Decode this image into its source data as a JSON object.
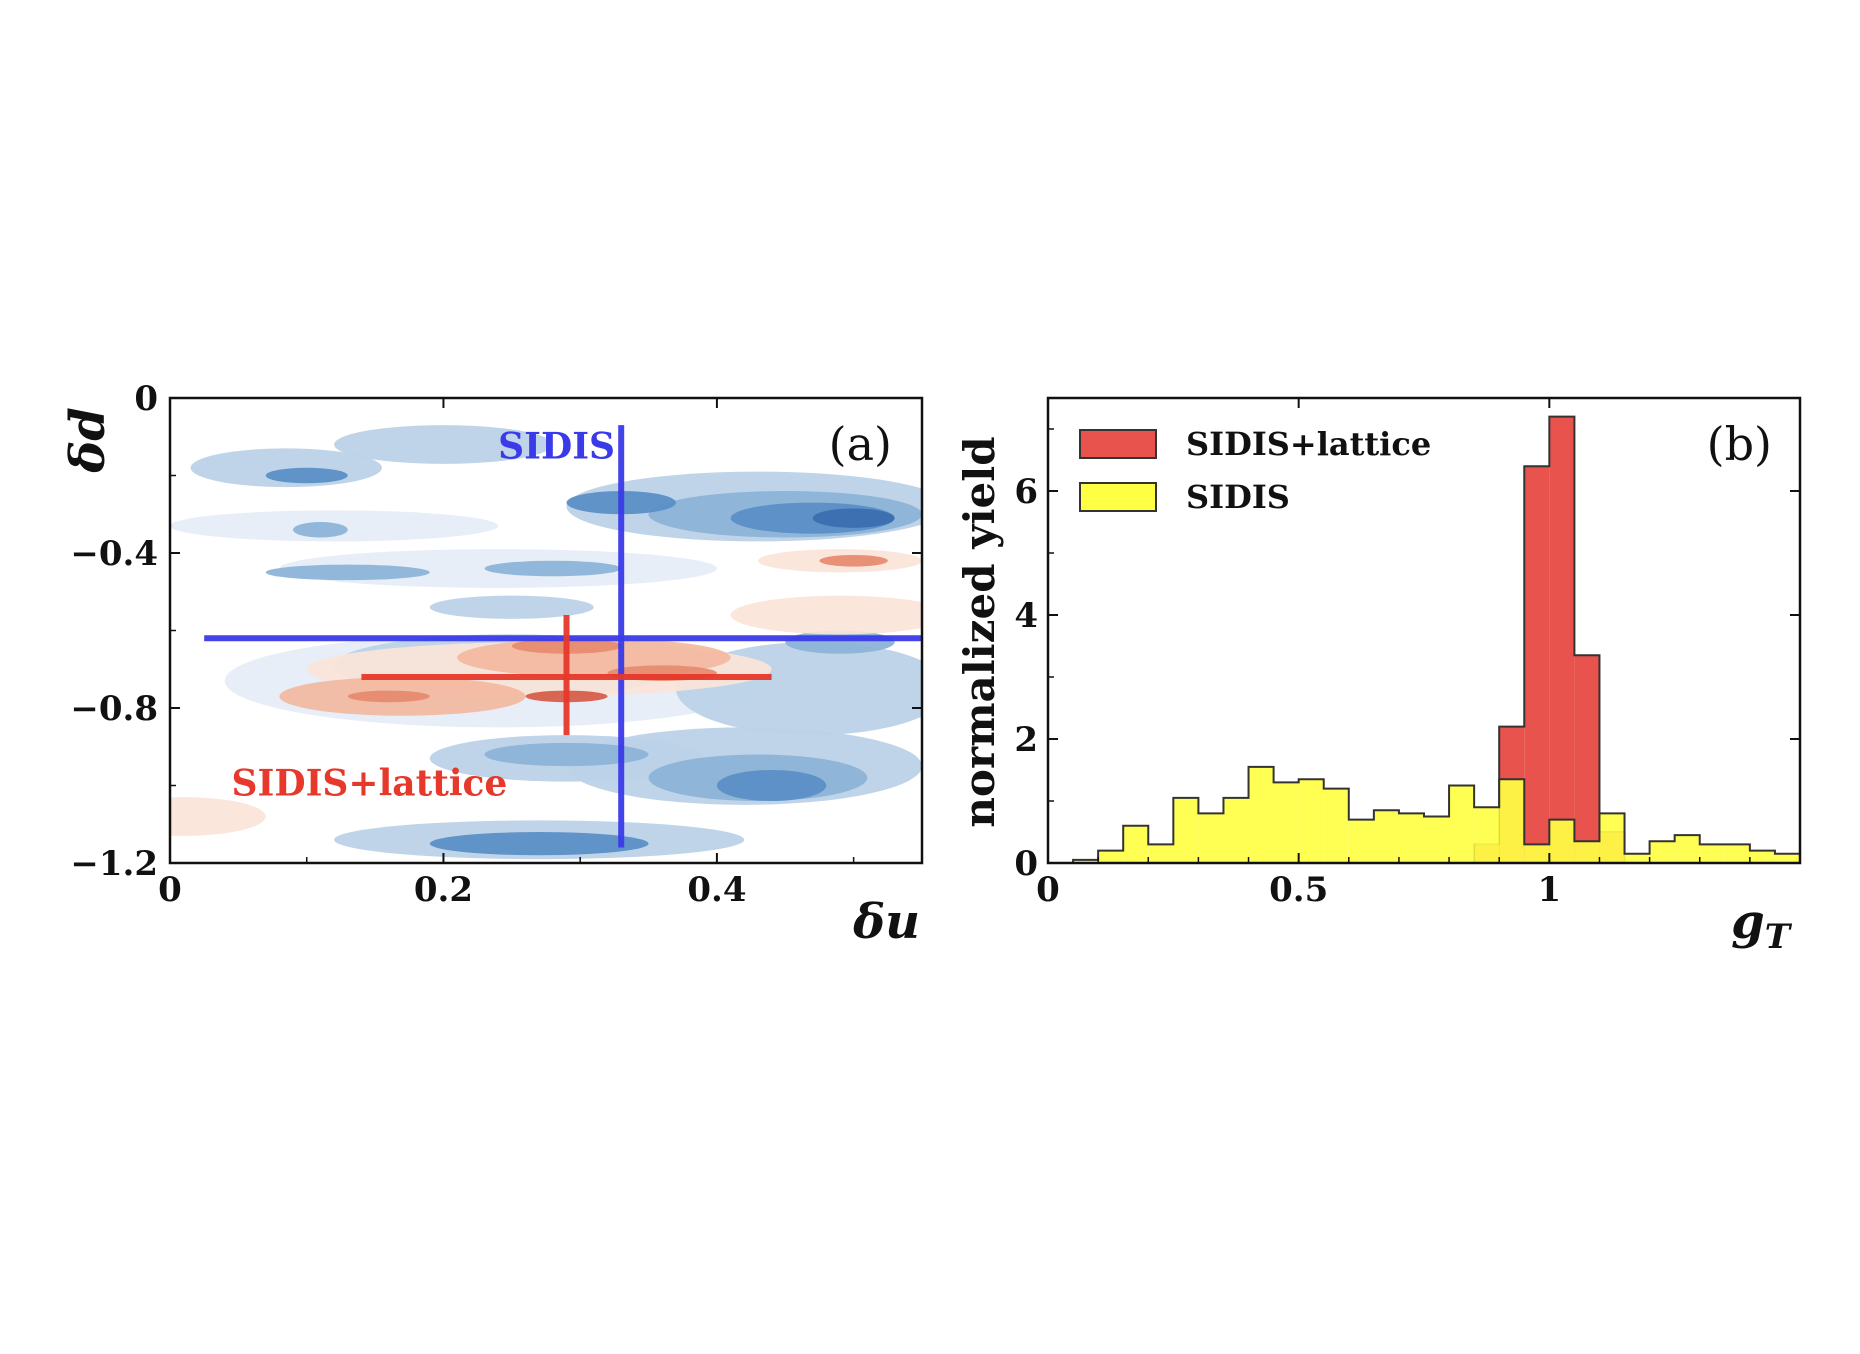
{
  "colors": {
    "sidis": "#ffff44",
    "sidis_lattice": "#e8534e",
    "overlap": "#e4502a",
    "blue_line": "#3a3ae8",
    "red_line": "#e6382b",
    "blue_contours": [
      "#e6edf7",
      "#bcd2e8",
      "#8cb3d8",
      "#5b8fc6",
      "#3a6fb0"
    ],
    "red_contours": [
      "#fbe4d8",
      "#f3b9a0",
      "#e68a6e",
      "#d65a45"
    ]
  },
  "chart_data": [
    {
      "id": "a",
      "type": "contour",
      "panel_label": "(a)",
      "xlabel": "δu",
      "ylabel": "δd",
      "xlim": [
        0,
        0.55
      ],
      "ylim": [
        -1.2,
        0
      ],
      "xticks": [
        "0",
        "0.2",
        "0.4"
      ],
      "xtick_values": [
        0,
        0.2,
        0.4
      ],
      "yticks": [
        "0",
        "−0.4",
        "−0.8",
        "−1.2"
      ],
      "ytick_values": [
        0,
        -0.4,
        -0.8,
        -1.2
      ],
      "annotations": [
        {
          "text": "SIDIS",
          "color": "#3a3ae8",
          "x": 0.24,
          "y": -0.12
        },
        {
          "text": "SIDIS+lattice",
          "color": "#e6382b",
          "x": 0.045,
          "y": -0.99
        }
      ],
      "estimates": [
        {
          "name": "SIDIS",
          "center": [
            0.33,
            -0.62
          ],
          "x_range": [
            0.025,
            0.55
          ],
          "y_range": [
            -1.16,
            -0.07
          ],
          "color": "#3a3ae8"
        },
        {
          "name": "SIDIS+lattice",
          "center": [
            0.29,
            -0.72
          ],
          "x_range": [
            0.14,
            0.44
          ],
          "y_range": [
            -0.87,
            -0.56
          ],
          "color": "#e6382b"
        }
      ],
      "blue_blobs": [
        {
          "cx": 0.2,
          "cy": -0.12,
          "rx": 0.08,
          "ry": 0.05,
          "level": 1
        },
        {
          "cx": 0.085,
          "cy": -0.18,
          "rx": 0.07,
          "ry": 0.05,
          "level": 1
        },
        {
          "cx": 0.1,
          "cy": -0.2,
          "rx": 0.03,
          "ry": 0.02,
          "level": 3
        },
        {
          "cx": 0.12,
          "cy": -0.33,
          "rx": 0.12,
          "ry": 0.04,
          "level": 0
        },
        {
          "cx": 0.11,
          "cy": -0.34,
          "rx": 0.02,
          "ry": 0.02,
          "level": 2
        },
        {
          "cx": 0.24,
          "cy": -0.44,
          "rx": 0.16,
          "ry": 0.05,
          "level": 0
        },
        {
          "cx": 0.13,
          "cy": -0.45,
          "rx": 0.06,
          "ry": 0.02,
          "level": 2
        },
        {
          "cx": 0.28,
          "cy": -0.44,
          "rx": 0.05,
          "ry": 0.02,
          "level": 2
        },
        {
          "cx": 0.25,
          "cy": -0.54,
          "rx": 0.06,
          "ry": 0.03,
          "level": 1
        },
        {
          "cx": 0.43,
          "cy": -0.28,
          "rx": 0.14,
          "ry": 0.09,
          "level": 1
        },
        {
          "cx": 0.45,
          "cy": -0.3,
          "rx": 0.1,
          "ry": 0.06,
          "level": 2
        },
        {
          "cx": 0.47,
          "cy": -0.31,
          "rx": 0.06,
          "ry": 0.04,
          "level": 3
        },
        {
          "cx": 0.5,
          "cy": -0.31,
          "rx": 0.03,
          "ry": 0.025,
          "level": 4
        },
        {
          "cx": 0.33,
          "cy": -0.27,
          "rx": 0.04,
          "ry": 0.03,
          "level": 3
        },
        {
          "cx": 0.24,
          "cy": -0.73,
          "rx": 0.2,
          "ry": 0.12,
          "level": 0
        },
        {
          "cx": 0.25,
          "cy": -0.69,
          "rx": 0.13,
          "ry": 0.08,
          "level": 1
        },
        {
          "cx": 0.47,
          "cy": -0.75,
          "rx": 0.1,
          "ry": 0.12,
          "level": 1
        },
        {
          "cx": 0.49,
          "cy": -0.63,
          "rx": 0.04,
          "ry": 0.03,
          "level": 2
        },
        {
          "cx": 0.42,
          "cy": -0.95,
          "rx": 0.13,
          "ry": 0.1,
          "level": 1
        },
        {
          "cx": 0.43,
          "cy": -0.98,
          "rx": 0.08,
          "ry": 0.06,
          "level": 2
        },
        {
          "cx": 0.44,
          "cy": -1.0,
          "rx": 0.04,
          "ry": 0.04,
          "level": 3
        },
        {
          "cx": 0.29,
          "cy": -0.93,
          "rx": 0.1,
          "ry": 0.06,
          "level": 1
        },
        {
          "cx": 0.29,
          "cy": -0.92,
          "rx": 0.06,
          "ry": 0.03,
          "level": 2
        },
        {
          "cx": 0.27,
          "cy": -1.14,
          "rx": 0.15,
          "ry": 0.05,
          "level": 1
        },
        {
          "cx": 0.27,
          "cy": -1.15,
          "rx": 0.08,
          "ry": 0.03,
          "level": 3
        }
      ],
      "red_blobs": [
        {
          "cx": 0.27,
          "cy": -0.7,
          "rx": 0.17,
          "ry": 0.07,
          "level": 0
        },
        {
          "cx": 0.31,
          "cy": -0.67,
          "rx": 0.1,
          "ry": 0.05,
          "level": 1
        },
        {
          "cx": 0.29,
          "cy": -0.64,
          "rx": 0.04,
          "ry": 0.02,
          "level": 2
        },
        {
          "cx": 0.36,
          "cy": -0.71,
          "rx": 0.04,
          "ry": 0.02,
          "level": 2
        },
        {
          "cx": 0.17,
          "cy": -0.77,
          "rx": 0.09,
          "ry": 0.05,
          "level": 1
        },
        {
          "cx": 0.16,
          "cy": -0.77,
          "rx": 0.03,
          "ry": 0.015,
          "level": 2
        },
        {
          "cx": 0.29,
          "cy": -0.77,
          "rx": 0.03,
          "ry": 0.015,
          "level": 3
        },
        {
          "cx": 0.49,
          "cy": -0.56,
          "rx": 0.08,
          "ry": 0.05,
          "level": 0
        },
        {
          "cx": 0.49,
          "cy": -0.42,
          "rx": 0.06,
          "ry": 0.03,
          "level": 0
        },
        {
          "cx": 0.5,
          "cy": -0.42,
          "rx": 0.025,
          "ry": 0.015,
          "level": 2
        },
        {
          "cx": 0.01,
          "cy": -1.08,
          "rx": 0.06,
          "ry": 0.05,
          "level": 0
        }
      ]
    },
    {
      "id": "b",
      "type": "histogram",
      "panel_label": "(b)",
      "xlabel": "g",
      "xlabel_sub": "T",
      "ylabel": "normalized yield",
      "xlim": [
        0,
        1.5
      ],
      "ylim": [
        0,
        7.5
      ],
      "xticks": [
        "0",
        "0.5",
        "1"
      ],
      "xtick_values": [
        0,
        0.5,
        1.0
      ],
      "yticks": [
        "0",
        "2",
        "4",
        "6"
      ],
      "ytick_values": [
        0,
        2,
        4,
        6
      ],
      "legend_position": "top-left",
      "series": [
        {
          "name": "SIDIS",
          "color": "#ffff44",
          "bin_width": 0.05,
          "bin_starts": [
            0.0,
            0.05,
            0.1,
            0.15,
            0.2,
            0.25,
            0.3,
            0.35,
            0.4,
            0.45,
            0.5,
            0.55,
            0.6,
            0.65,
            0.7,
            0.75,
            0.8,
            0.85,
            0.9,
            0.95,
            1.0,
            1.05,
            1.1,
            1.15,
            1.2,
            1.25,
            1.3,
            1.35,
            1.4,
            1.45
          ],
          "values": [
            0.0,
            0.05,
            0.2,
            0.6,
            0.3,
            1.05,
            0.8,
            1.05,
            1.55,
            1.3,
            1.35,
            1.2,
            0.7,
            0.85,
            0.8,
            0.75,
            1.25,
            0.9,
            1.35,
            0.3,
            0.7,
            0.35,
            0.8,
            0.15,
            0.35,
            0.45,
            0.3,
            0.3,
            0.2,
            0.15
          ]
        },
        {
          "name": "SIDIS+lattice",
          "color": "#e8534e",
          "bin_width": 0.05,
          "bin_starts": [
            0.85,
            0.9,
            0.95,
            1.0,
            1.05,
            1.1
          ],
          "values": [
            0.3,
            2.2,
            6.4,
            7.2,
            3.35,
            0.5
          ]
        }
      ]
    }
  ]
}
